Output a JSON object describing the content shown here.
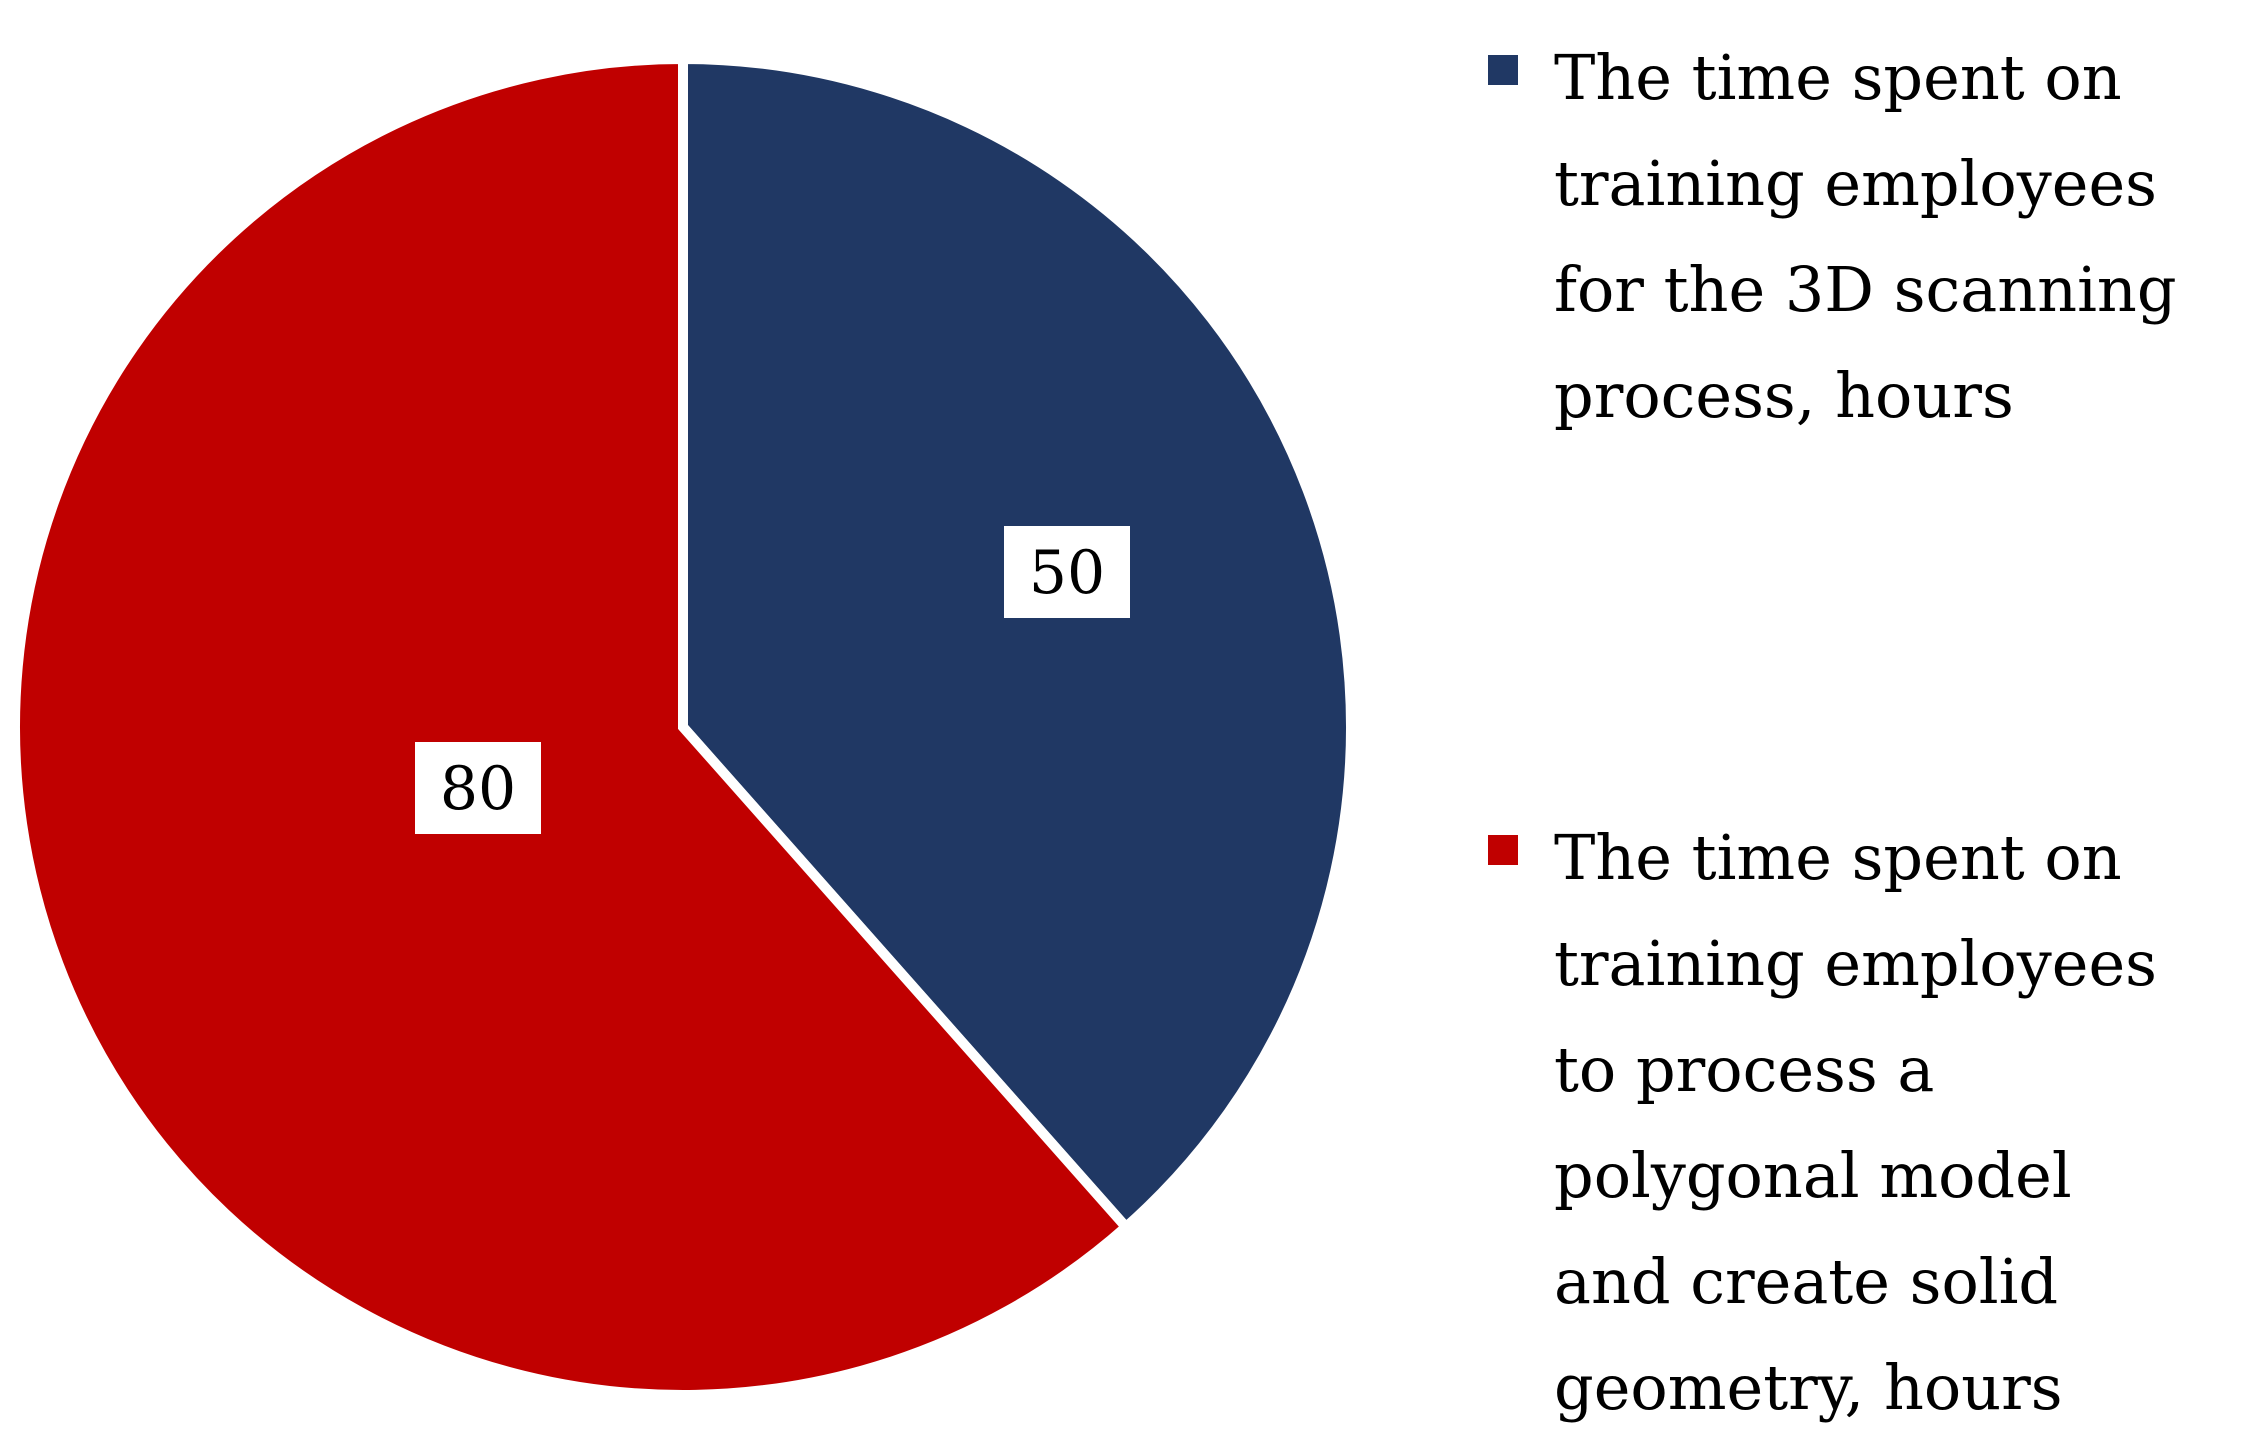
{
  "chart_data": {
    "type": "pie",
    "slices": [
      {
        "label": "The time spent on training employees for the 3D scanning process, hours",
        "legend_lines": [
          "The time spent on",
          "training employees",
          "for the 3D scanning",
          "process, hours"
        ],
        "value": 50,
        "color": "#203864"
      },
      {
        "label": "The time spent on training employees to process a polygonal model and create solid geometry, hours",
        "legend_lines": [
          "The time spent on",
          "training employees",
          "to process a",
          "polygonal model",
          "and create solid",
          "geometry, hours"
        ],
        "value": 80,
        "color": "#c00000"
      }
    ],
    "start_angle": "top (12 o'clock)",
    "direction": "clockwise",
    "data_labels": true,
    "legend_position": "right"
  }
}
